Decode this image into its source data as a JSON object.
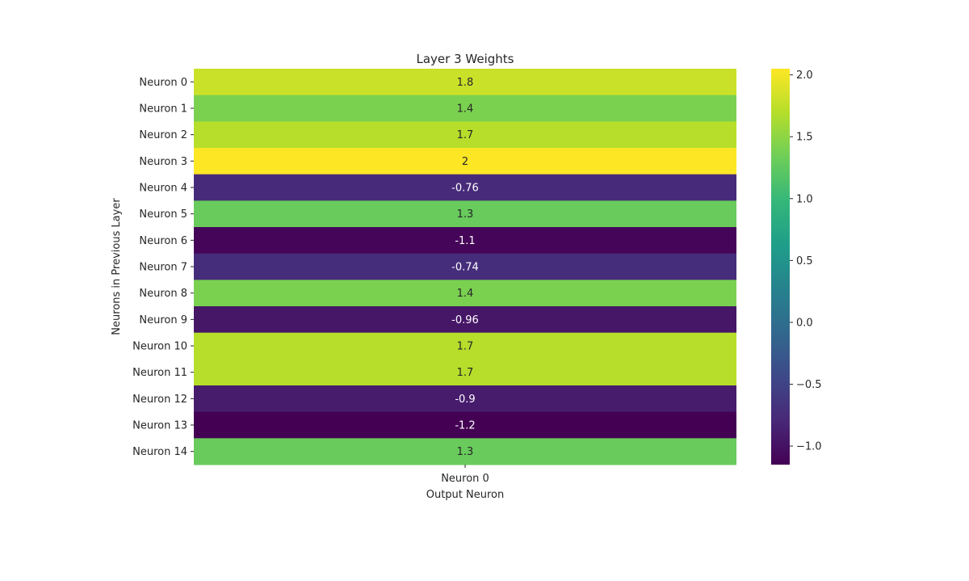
{
  "chart_data": {
    "type": "heatmap",
    "title": "Layer 3 Weights",
    "xlabel": "Output Neuron",
    "ylabel": "Neurons in Previous Layer",
    "columns": [
      "Neuron 0"
    ],
    "rows": [
      "Neuron 0",
      "Neuron 1",
      "Neuron 2",
      "Neuron 3",
      "Neuron 4",
      "Neuron 5",
      "Neuron 6",
      "Neuron 7",
      "Neuron 8",
      "Neuron 9",
      "Neuron 10",
      "Neuron 11",
      "Neuron 12",
      "Neuron 13",
      "Neuron 14"
    ],
    "values": [
      1.8,
      1.4,
      1.7,
      2.05,
      -0.76,
      1.3,
      -1.1,
      -0.74,
      1.4,
      -0.96,
      1.7,
      1.7,
      -0.9,
      -1.15,
      1.3
    ],
    "cell_labels": [
      "1.8",
      "1.4",
      "1.7",
      "2",
      "-0.76",
      "1.3",
      "-1.1",
      "-0.74",
      "1.4",
      "-0.96",
      "1.7",
      "1.7",
      "-0.9",
      "-1.2",
      "1.3"
    ],
    "colormap": "viridis",
    "color_range": [
      -1.15,
      2.05
    ],
    "colorbar": {
      "ticks": [
        2.0,
        1.5,
        1.0,
        0.5,
        0.0,
        -0.5,
        -1.0
      ],
      "tick_labels": [
        "2.0",
        "1.5",
        "1.0",
        "0.5",
        "0.0",
        "−0.5",
        "−1.0"
      ]
    },
    "grid": false,
    "legend": "colorbar-right"
  }
}
